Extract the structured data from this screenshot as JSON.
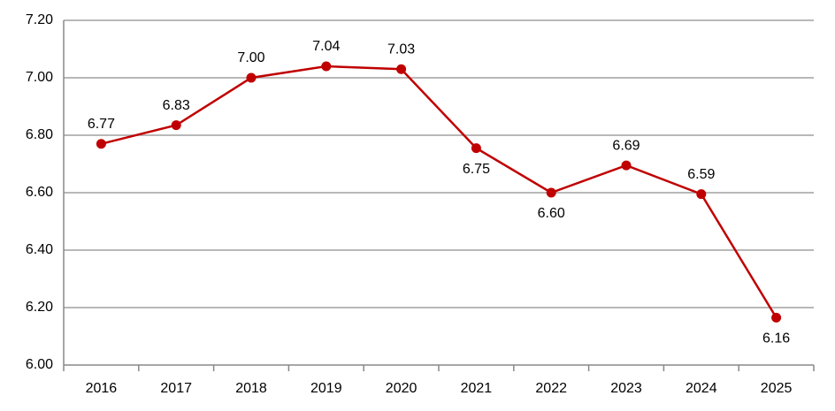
{
  "chart_data": {
    "type": "line",
    "categories": [
      "2016",
      "2017",
      "2018",
      "2019",
      "2020",
      "2021",
      "2022",
      "2023",
      "2024",
      "2025"
    ],
    "series": [
      {
        "color": "#c00000",
        "values": [
          6.77,
          6.835,
          7.0,
          7.04,
          7.03,
          6.755,
          6.6,
          6.695,
          6.595,
          6.165
        ],
        "value_labels": [
          "6.77",
          "6.83",
          "7.00",
          "7.04",
          "7.03",
          "6.75",
          "6.60",
          "6.69",
          "6.59",
          "6.16"
        ]
      }
    ],
    "ylim": [
      6.0,
      7.2
    ],
    "yticks": [
      {
        "value": 6.0,
        "label": "6.00"
      },
      {
        "value": 6.2,
        "label": "6.20"
      },
      {
        "value": 6.4,
        "label": "6.40"
      },
      {
        "value": 6.6,
        "label": "6.60"
      },
      {
        "value": 6.8,
        "label": "6.80"
      },
      {
        "value": 7.0,
        "label": "7.00"
      },
      {
        "value": 7.2,
        "label": "7.20"
      }
    ],
    "grid": true
  }
}
